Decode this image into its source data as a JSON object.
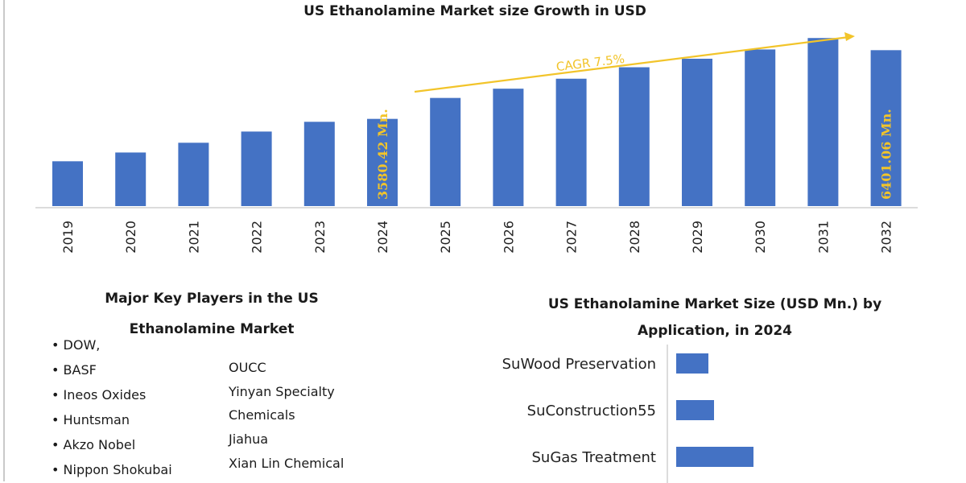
{
  "chart_data": [
    {
      "type": "bar",
      "title": "US Ethanolamine Market size Growth in USD",
      "categories": [
        "2019",
        "2020",
        "2021",
        "2022",
        "2023",
        "2024",
        "2025",
        "2026",
        "2027",
        "2028",
        "2029",
        "2030",
        "2031",
        "2032"
      ],
      "values": [
        1840,
        2200,
        2600,
        3060,
        3460,
        3580.42,
        4440,
        4820,
        5230,
        5700,
        6050,
        6430,
        6900,
        6401.06
      ],
      "bar_labels": {
        "2024": "3580.42 Mn.",
        "2032": "6401.06 Mn."
      },
      "annotation": "CAGR 7.5%",
      "ylim": [
        0,
        7800
      ],
      "grid": false,
      "bar_color": "#4472c4",
      "label_color": "#f2c42a"
    },
    {
      "type": "bar",
      "orientation": "horizontal",
      "title": "US Ethanolamine Market Size (USD Mn.) by Application, in 2024",
      "title_lines": [
        "US Ethanolamine Market Size (USD Mn.) by",
        "Application, in 2024"
      ],
      "categories": [
        "SuWood Preservation",
        "SuConstruction55",
        "SuGas Treatment"
      ],
      "values": [
        40,
        47,
        96
      ],
      "bar_color": "#4472c4"
    }
  ],
  "key_players": {
    "title_lines": [
      "Major Key Players in the US",
      "Ethanolamine Market"
    ],
    "left": [
      "• DOW,",
      "• BASF",
      "• Ineos Oxides",
      "• Huntsman",
      "• Akzo Nobel",
      "• Nippon Shokubai"
    ],
    "right": [
      "OUCC",
      "Yinyan Specialty",
      "Chemicals",
      "Jiahua",
      "Xian Lin Chemical"
    ]
  }
}
